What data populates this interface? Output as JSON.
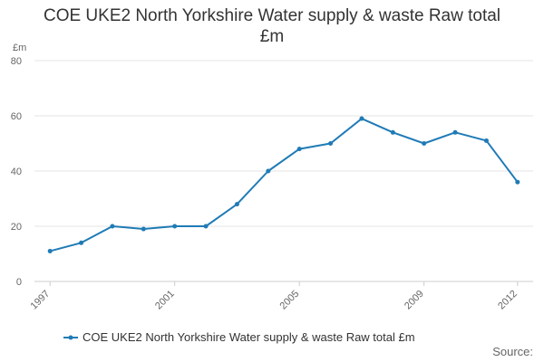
{
  "chart_data": {
    "type": "line",
    "title_lines": [
      "COE UKE2 North Yorkshire Water supply & waste Raw total",
      "£m"
    ],
    "ylabel": "£m",
    "xlabel": "",
    "x": [
      1997,
      1998,
      1999,
      2000,
      2001,
      2002,
      2003,
      2004,
      2005,
      2006,
      2007,
      2008,
      2009,
      2010,
      2011,
      2012
    ],
    "x_tick_labels": [
      "1997",
      "2001",
      "2005",
      "2009",
      "2012"
    ],
    "y_ticks": [
      0,
      20,
      40,
      60,
      80
    ],
    "ylim": [
      0,
      80
    ],
    "grid": true,
    "legend_position": "bottom",
    "series": [
      {
        "name": "COE UKE2 North Yorkshire Water supply & waste Raw total £m",
        "color": "#1f7bb6",
        "values": [
          11,
          14,
          20,
          19,
          20,
          20,
          28,
          40,
          48,
          50,
          59,
          54,
          50,
          54,
          51,
          36
        ]
      }
    ]
  },
  "footer": {
    "source_label": "Source:"
  }
}
